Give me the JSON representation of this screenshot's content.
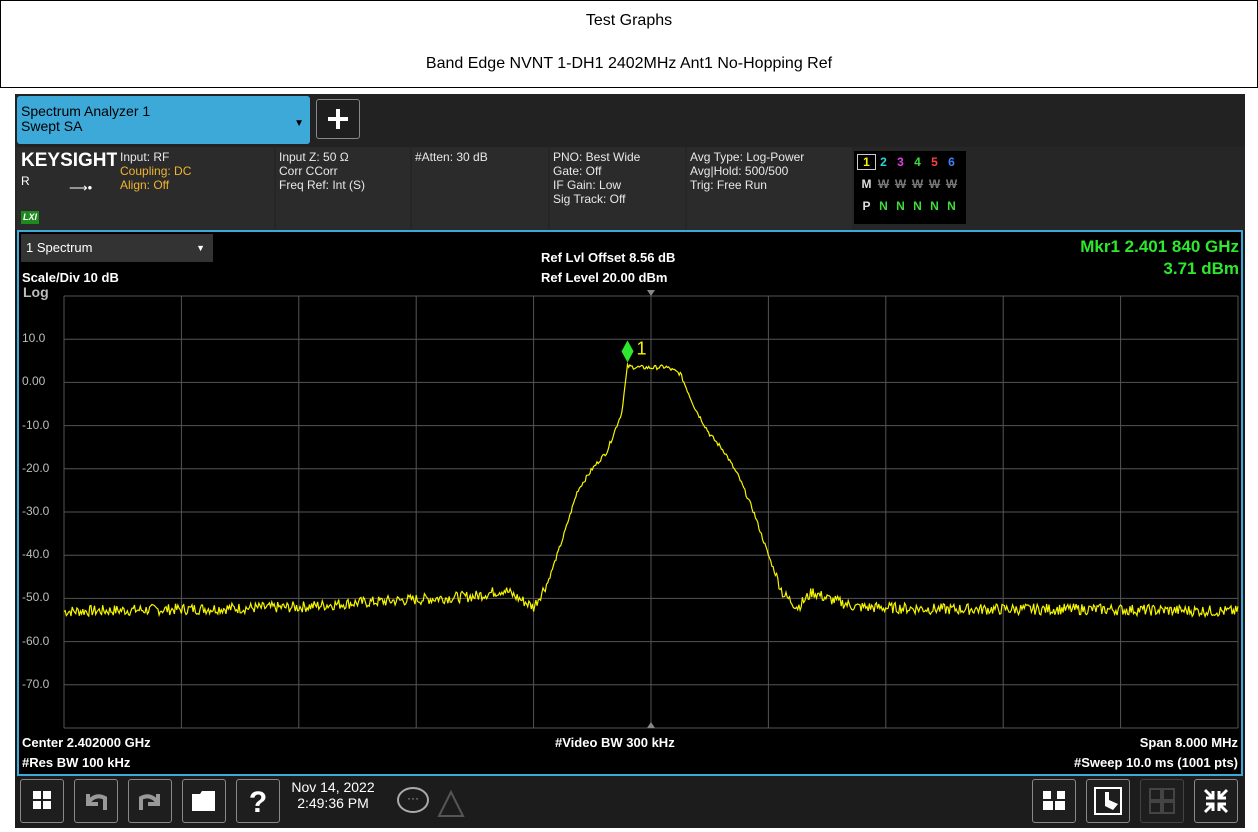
{
  "page": {
    "title": "Test Graphs",
    "subtitle": "Band Edge NVNT 1-DH1 2402MHz Ant1 No-Hopping Ref"
  },
  "tab": {
    "line1": "Spectrum Analyzer 1",
    "line2": "Swept SA"
  },
  "settings": {
    "brand": "KEYSIGHT",
    "mode_r": "R",
    "lxi": "LXI",
    "col1": [
      "Input: RF",
      "Coupling: DC",
      "Align: Off"
    ],
    "col2": [
      "Input Z: 50 Ω",
      "Corr CCorr",
      "Freq Ref: Int (S)"
    ],
    "col3": [
      "#Atten: 30 dB"
    ],
    "col4": [
      "PNO: Best Wide",
      "Gate: Off",
      "IF Gain: Low",
      "Sig Track: Off"
    ],
    "col5": [
      "Avg Type: Log-Power",
      "Avg|Hold: 500/500",
      "Trig: Free Run"
    ],
    "traces": {
      "numbers": [
        "1",
        "2",
        "3",
        "4",
        "5",
        "6"
      ],
      "number_colors": [
        "#f5f500",
        "#26d8d8",
        "#e040e0",
        "#3cdc3c",
        "#ff4040",
        "#4080ff"
      ],
      "row2": [
        "M",
        "W",
        "W",
        "W",
        "W",
        "W"
      ],
      "row3": [
        "P",
        "N",
        "N",
        "N",
        "N",
        "N"
      ]
    }
  },
  "panel": {
    "window_name": "1 Spectrum",
    "scale": "Scale/Div 10 dB",
    "log": "Log",
    "ref_offset": "Ref Lvl Offset 8.56 dB",
    "ref_level": "Ref Level 20.00 dBm",
    "marker_freq": "Mkr1  2.401 840 GHz",
    "marker_amp": "3.71 dBm",
    "marker_label": "1",
    "center": "Center 2.402000 GHz",
    "res_bw": "#Res BW 100 kHz",
    "video_bw": "#Video BW 300 kHz",
    "span": "Span 8.000 MHz",
    "sweep": "#Sweep 10.0 ms (1001 pts)"
  },
  "chart_data": {
    "type": "line",
    "title": "",
    "xlabel": "",
    "ylabel": "",
    "xlim": [
      2.398,
      2.406
    ],
    "ylim": [
      -80,
      20
    ],
    "y_ticks": [
      "10.0",
      "0.00",
      "-10.0",
      "-20.0",
      "-30.0",
      "-40.0",
      "-50.0",
      "-60.0",
      "-70.0"
    ],
    "x_unit": "GHz",
    "y_unit": "dBm",
    "grid": true,
    "trace_color": "#f5f500",
    "series": [
      {
        "x": [
          2.398,
          2.3988,
          2.3996,
          2.4,
          2.4008,
          2.401,
          2.4011,
          2.4012,
          2.4013,
          2.4014,
          2.4015,
          2.4016,
          2.4017,
          2.4018,
          2.40184,
          2.4019,
          2.402,
          2.4021,
          2.4022,
          2.4023,
          2.4024,
          2.4025,
          2.4026,
          2.4027,
          2.4028,
          2.4029,
          2.403,
          2.4031,
          2.4032,
          2.4034,
          2.404,
          2.405,
          2.406
        ],
        "y": [
          -53,
          -52.5,
          -52,
          -51,
          -49.5,
          -48,
          -50,
          -52,
          -46,
          -36,
          -25,
          -20,
          -16,
          -7,
          3.71,
          3.5,
          3.4,
          3.6,
          2,
          -6,
          -12,
          -16,
          -22,
          -30,
          -40,
          -49,
          -52,
          -48.5,
          -50,
          -52,
          -52.5,
          -52.5,
          -53
        ]
      }
    ],
    "marker": {
      "x": 2.40184,
      "y": 3.71,
      "label": "1"
    }
  },
  "bottom": {
    "date": "Nov 14, 2022",
    "time": "2:49:36 PM"
  }
}
